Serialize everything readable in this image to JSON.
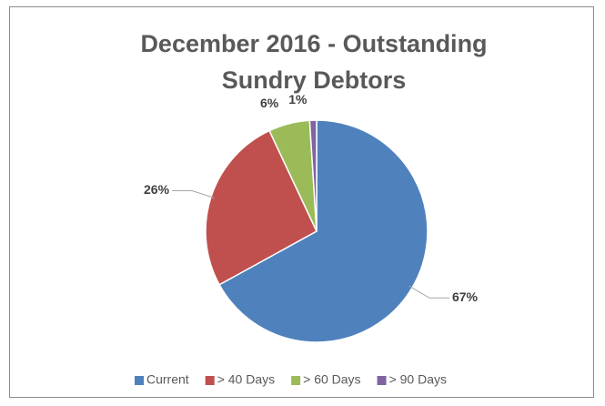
{
  "chart_data": {
    "type": "pie",
    "title": "December 2016 - Outstanding Sundry Debtors",
    "categories": [
      "Current",
      "> 40 Days",
      "> 60 Days",
      "> 90 Days"
    ],
    "values": [
      67,
      26,
      6,
      1
    ],
    "value_labels": [
      "67%",
      "26%",
      "6%",
      "1%"
    ],
    "colors": [
      "#4f81bd",
      "#c0504d",
      "#9bbb59",
      "#8064a2"
    ],
    "legend": "bottom"
  }
}
